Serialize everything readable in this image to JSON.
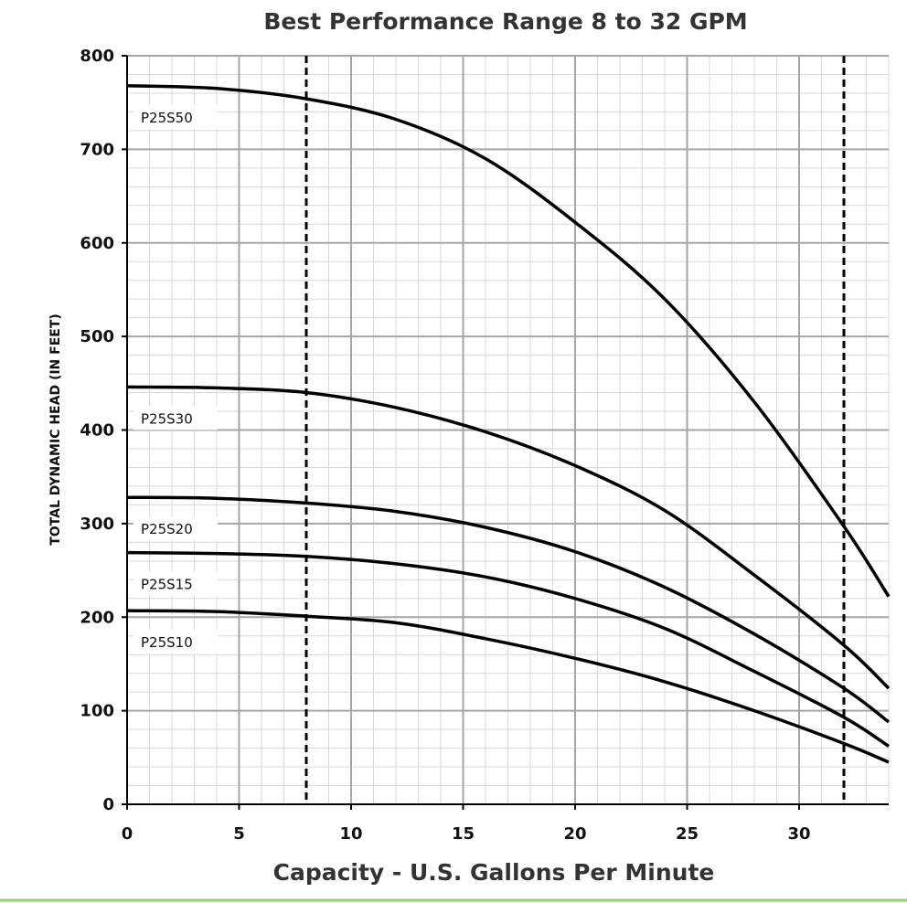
{
  "chart_data": {
    "type": "line",
    "title": "Best Performance Range 8 to 32 GPM",
    "xlabel": "Capacity - U.S. Gallons Per Minute",
    "ylabel": "TOTAL DYNAMIC HEAD (IN FEET)",
    "xlim": [
      0,
      34
    ],
    "ylim": [
      0,
      800
    ],
    "x_ticks": [
      "0",
      "5",
      "10",
      "15",
      "20",
      "25",
      "30"
    ],
    "y_ticks": [
      "0",
      "100",
      "200",
      "300",
      "400",
      "500",
      "600",
      "700",
      "800"
    ],
    "grid": true,
    "minor_grid": true,
    "reference_lines_x": [
      8,
      32
    ],
    "series": [
      {
        "name": "P25S50",
        "x": [
          0,
          4,
          8,
          12,
          16,
          20,
          24,
          28,
          32,
          34
        ],
        "y": [
          768,
          765,
          754,
          732,
          690,
          622,
          540,
          430,
          297,
          222
        ]
      },
      {
        "name": "P25S30",
        "x": [
          0,
          4,
          8,
          12,
          16,
          20,
          24,
          28,
          32,
          34
        ],
        "y": [
          446,
          445,
          440,
          424,
          398,
          362,
          314,
          245,
          170,
          124
        ]
      },
      {
        "name": "P25S20",
        "x": [
          0,
          4,
          8,
          12,
          16,
          20,
          24,
          28,
          32,
          34
        ],
        "y": [
          328,
          327,
          322,
          313,
          296,
          270,
          232,
          182,
          124,
          88
        ]
      },
      {
        "name": "P25S15",
        "x": [
          0,
          4,
          8,
          12,
          16,
          20,
          24,
          28,
          32,
          34
        ],
        "y": [
          269,
          268,
          265,
          257,
          243,
          220,
          188,
          142,
          93,
          62
        ]
      },
      {
        "name": "P25S10",
        "x": [
          0,
          4,
          8,
          12,
          16,
          20,
          24,
          28,
          32,
          34
        ],
        "y": [
          207,
          206,
          201,
          194,
          177,
          156,
          131,
          100,
          65,
          45
        ]
      }
    ],
    "colors": {
      "curve": "#000000",
      "major_grid": "#a6a6a6",
      "minor_grid": "#d9d9d9",
      "axis": "#000000",
      "bottom_rule": "#8dd36a"
    }
  }
}
